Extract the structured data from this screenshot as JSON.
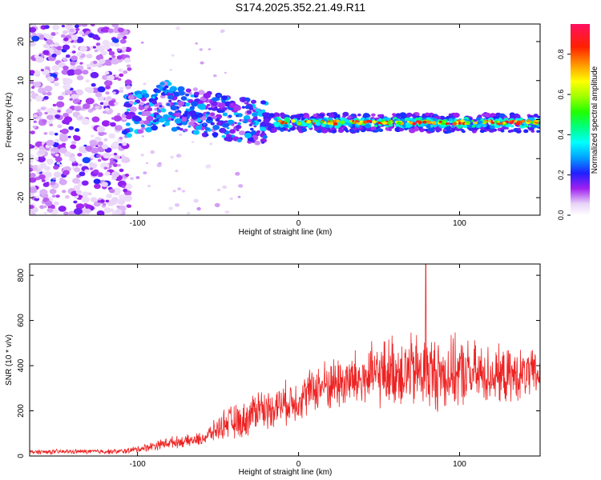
{
  "title": "S174.2025.352.21.49.R11",
  "colors": {
    "snr_line": "#ee2222",
    "axis": "#000000"
  },
  "chart_data": [
    {
      "type": "heatmap",
      "xlabel": "Height of straight line (km)",
      "ylabel": "Frequency (Hz)",
      "xlim": [
        -167,
        150
      ],
      "ylim": [
        -24.5,
        24.5
      ],
      "x_ticks": [
        -100,
        0,
        100
      ],
      "y_ticks": [
        -20,
        -10,
        0,
        10,
        20
      ],
      "x_tick_labels": [
        "-100",
        "0",
        "100"
      ],
      "y_tick_labels": [
        "-20",
        "-10",
        "0",
        "10",
        "20"
      ],
      "colorbar": {
        "label": "Normalized spectral amplitude",
        "range": [
          0.0,
          0.95
        ],
        "ticks": [
          0.0,
          0.2,
          0.4,
          0.6,
          0.8
        ],
        "tick_labels": [
          "0.0",
          "0.2",
          "0.4",
          "0.6",
          "0.8"
        ]
      },
      "description_regions": [
        {
          "x_range": [
            -167,
            -105
          ],
          "freq_range": [
            -24.5,
            24.5
          ],
          "amplitude": "low noise (0.05-0.25)"
        },
        {
          "x_range": [
            -108,
            -20
          ],
          "freq_range": [
            -6,
            8
          ],
          "amplitude": "scattered 0.2-0.45"
        },
        {
          "x_range": [
            -20,
            150
          ],
          "freq_range": [
            -2,
            1
          ],
          "amplitude": "tone peaks up to 0.9"
        }
      ]
    },
    {
      "type": "line",
      "xlabel": "Height of straight line (km)",
      "ylabel": "SNR (10 * v/v)",
      "xlim": [
        -167,
        150
      ],
      "ylim": [
        0,
        850
      ],
      "x_ticks": [
        -100,
        0,
        100
      ],
      "y_ticks": [
        0,
        200,
        400,
        600,
        800
      ],
      "x_tick_labels": [
        "-100",
        "0",
        "100"
      ],
      "y_tick_labels": [
        "0",
        "200",
        "400",
        "600",
        "800"
      ],
      "series": [
        {
          "name": "SNR",
          "envelope_x": [
            -167,
            -130,
            -110,
            -100,
            -90,
            -80,
            -70,
            -60,
            -50,
            -45,
            -40,
            -35,
            -30,
            -25,
            -20,
            -15,
            -10,
            -5,
            0,
            10,
            20,
            30,
            40,
            50,
            60,
            70,
            80,
            90,
            100,
            110,
            120,
            130,
            140,
            150
          ],
          "envelope_mean": [
            18,
            20,
            20,
            30,
            45,
            60,
            65,
            75,
            120,
            150,
            150,
            150,
            180,
            220,
            200,
            220,
            230,
            240,
            250,
            300,
            320,
            330,
            340,
            360,
            380,
            370,
            370,
            360,
            370,
            360,
            360,
            350,
            360,
            360
          ],
          "envelope_spread": [
            12,
            12,
            14,
            18,
            25,
            30,
            30,
            35,
            60,
            80,
            90,
            90,
            100,
            110,
            100,
            100,
            110,
            110,
            110,
            120,
            140,
            150,
            160,
            170,
            190,
            200,
            200,
            190,
            180,
            170,
            150,
            140,
            130,
            120
          ],
          "max_value": 850,
          "max_at_x": 79
        }
      ]
    }
  ]
}
